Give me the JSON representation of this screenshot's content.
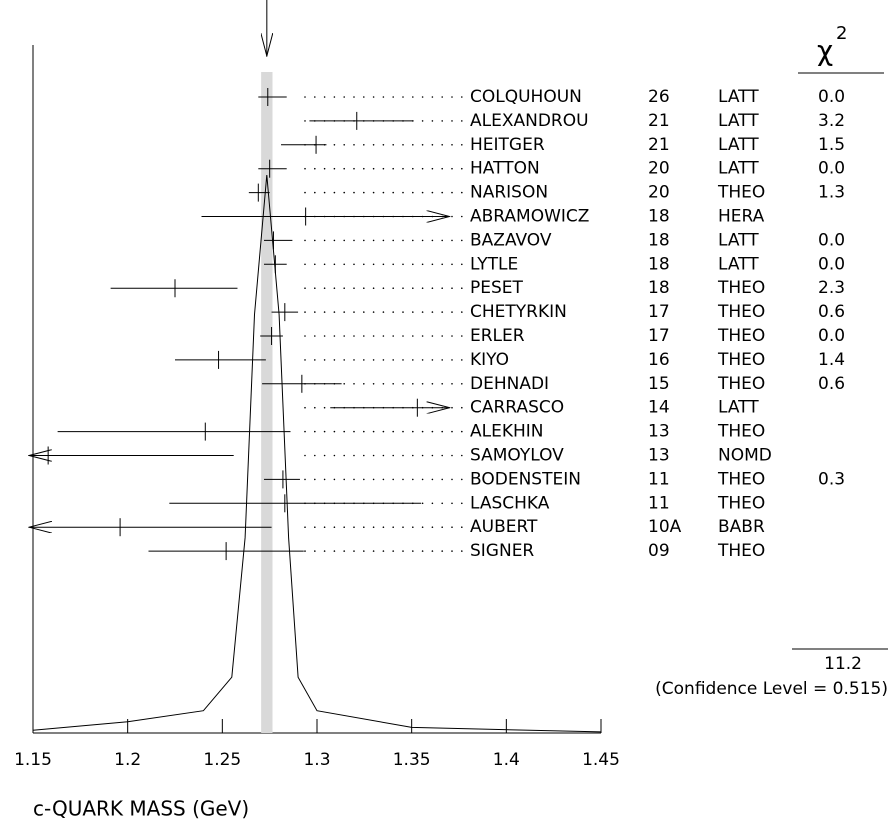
{
  "chart_data": {
    "type": "ideogram",
    "xlabel": "c-QUARK MASS (GeV)",
    "xlim": [
      1.15,
      1.45
    ],
    "xticks": [
      1.15,
      1.2,
      1.25,
      1.3,
      1.35,
      1.4,
      1.45
    ],
    "average": 1.2735,
    "band": [
      1.2705,
      1.2765
    ],
    "chi2_header": "χ",
    "chi2_header_sup": "2",
    "chi2_total": 11.2,
    "confidence": "(Confidence Level = 0.515)",
    "names": [
      "COLQUHOUN",
      "ALEXANDROU",
      "HEITGER",
      "HATTON",
      "NARISON",
      "ABRAMOWICZ",
      "BAZAVOV",
      "LYTLE",
      "PESET",
      "CHETYRKIN",
      "ERLER",
      "KIYO",
      "DEHNADI",
      "CARRASCO",
      "ALEKHIN",
      "SAMOYLOV",
      "BODENSTEIN",
      "LASCHKA",
      "AUBERT",
      "SIGNER"
    ],
    "years": [
      "26",
      "21",
      "21",
      "20",
      "20",
      "18",
      "18",
      "18",
      "18",
      "17",
      "17",
      "16",
      "15",
      "14",
      "13",
      "13",
      "11",
      "11",
      "10A",
      "09"
    ],
    "techniques": [
      "LATT",
      "LATT",
      "LATT",
      "LATT",
      "THEO",
      "HERA",
      "LATT",
      "LATT",
      "THEO",
      "THEO",
      "THEO",
      "THEO",
      "THEO",
      "LATT",
      "THEO",
      "NOMD",
      "THEO",
      "THEO",
      "BABR",
      "THEO"
    ],
    "chi2": [
      0.0,
      3.2,
      1.5,
      0.0,
      1.3,
      null,
      0.0,
      0.0,
      2.3,
      0.6,
      0.0,
      1.4,
      0.6,
      null,
      null,
      null,
      0.3,
      null,
      null,
      null
    ],
    "chi2_labels": [
      "0.0",
      "3.2",
      "1.5",
      "0.0",
      "1.3",
      null,
      "0.0",
      "0.0",
      "2.3",
      "0.6",
      "0.0",
      "1.4",
      "0.6",
      null,
      null,
      null,
      "0.3",
      null,
      null,
      null
    ],
    "values": [
      1.274,
      1.321,
      1.2995,
      1.275,
      1.269,
      1.294,
      1.277,
      1.278,
      1.225,
      1.283,
      1.276,
      1.248,
      1.292,
      1.353,
      1.241,
      1.158,
      1.282,
      1.283,
      1.196,
      1.252
    ],
    "lower": [
      1.269,
      1.296,
      1.281,
      1.269,
      1.264,
      1.239,
      1.272,
      1.272,
      1.191,
      1.276,
      1.27,
      1.225,
      1.271,
      1.307,
      1.163,
      1.148,
      1.272,
      1.222,
      1.148,
      1.211
    ],
    "upper": [
      1.284,
      1.351,
      1.305,
      1.284,
      1.275,
      1.37,
      1.287,
      1.284,
      1.258,
      1.29,
      1.282,
      1.273,
      1.313,
      1.37,
      1.286,
      1.256,
      1.291,
      1.355,
      1.276,
      1.293
    ],
    "arrows": [
      null,
      null,
      null,
      null,
      null,
      "right",
      null,
      null,
      null,
      null,
      null,
      null,
      null,
      "right",
      null,
      "left",
      null,
      null,
      "left",
      null
    ],
    "curve": {
      "x": [
        1.15,
        1.2,
        1.24,
        1.255,
        1.262,
        1.267,
        1.2735,
        1.28,
        1.285,
        1.29,
        1.3,
        1.35,
        1.45
      ],
      "y": [
        0.005,
        0.02,
        0.04,
        0.1,
        0.35,
        0.75,
        1.0,
        0.75,
        0.35,
        0.1,
        0.04,
        0.01,
        0.002
      ]
    }
  }
}
